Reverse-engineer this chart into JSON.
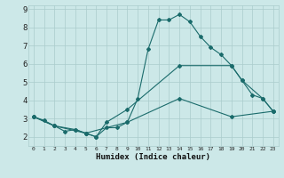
{
  "xlabel": "Humidex (Indice chaleur)",
  "xlim": [
    -0.5,
    23.5
  ],
  "ylim": [
    1.5,
    9.2
  ],
  "yticks": [
    2,
    3,
    4,
    5,
    6,
    7,
    8,
    9
  ],
  "xticks": [
    0,
    1,
    2,
    3,
    4,
    5,
    6,
    7,
    8,
    9,
    10,
    11,
    12,
    13,
    14,
    15,
    16,
    17,
    18,
    19,
    20,
    21,
    22,
    23
  ],
  "background_color": "#cce8e8",
  "grid_color": "#aacccc",
  "line_color": "#1a6b6b",
  "line1_x": [
    0,
    1,
    2,
    3,
    4,
    5,
    6,
    7,
    8,
    9,
    10,
    11,
    12,
    13,
    14,
    15,
    16,
    17,
    18,
    19,
    20,
    21,
    22,
    23
  ],
  "line1_y": [
    3.1,
    2.9,
    2.6,
    2.3,
    2.4,
    2.2,
    2.0,
    2.5,
    2.5,
    2.8,
    4.1,
    6.8,
    8.4,
    8.4,
    8.7,
    8.3,
    7.5,
    6.9,
    6.5,
    5.9,
    5.1,
    4.3,
    4.1,
    3.4
  ],
  "line2_x": [
    0,
    2,
    4,
    5,
    6,
    7,
    9,
    14,
    19,
    20,
    22,
    23
  ],
  "line2_y": [
    3.1,
    2.6,
    2.4,
    2.2,
    2.0,
    2.8,
    3.5,
    5.9,
    5.9,
    5.1,
    4.1,
    3.4
  ],
  "line3_x": [
    0,
    2,
    5,
    9,
    14,
    19,
    23
  ],
  "line3_y": [
    3.1,
    2.6,
    2.2,
    2.8,
    4.1,
    3.1,
    3.4
  ]
}
